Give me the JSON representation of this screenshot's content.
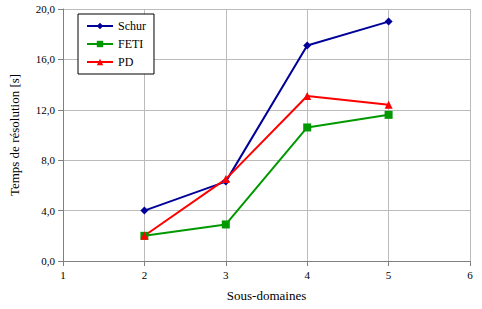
{
  "chart_data": {
    "type": "line",
    "x_label": "Sous-domaines",
    "y_label": "Temps de résolution [s]",
    "x": [
      2,
      3,
      4,
      5
    ],
    "series": [
      {
        "name": "Schur",
        "color": "#000099",
        "marker": "diamond",
        "values": [
          4.0,
          6.3,
          17.1,
          19.0
        ]
      },
      {
        "name": "FETI",
        "color": "#009900",
        "marker": "square",
        "values": [
          2.0,
          2.9,
          10.6,
          11.6
        ]
      },
      {
        "name": "PD",
        "color": "#ff0000",
        "marker": "triangle",
        "values": [
          2.0,
          6.5,
          13.1,
          12.4
        ]
      }
    ],
    "xlim": [
      1,
      6
    ],
    "xticks": [
      1,
      2,
      3,
      4,
      5,
      6
    ],
    "ylim": [
      0,
      20
    ],
    "yticks": [
      {
        "value": 0,
        "label": "0,0"
      },
      {
        "value": 4,
        "label": "4,0"
      },
      {
        "value": 8,
        "label": "8,0"
      },
      {
        "value": 12,
        "label": "12,0"
      },
      {
        "value": 16,
        "label": "16,0"
      },
      {
        "value": 20,
        "label": "20,0"
      }
    ],
    "grid": true,
    "legend": "top-left"
  }
}
